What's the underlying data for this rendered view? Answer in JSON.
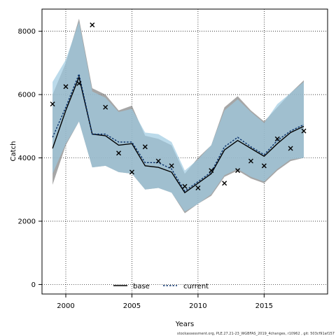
{
  "chart_data": {
    "type": "line",
    "xlabel": "Years",
    "ylabel": "Catch",
    "xlim": [
      1998.2,
      2019.8
    ],
    "ylim": [
      -300,
      8700
    ],
    "x_ticks": [
      2000,
      2005,
      2010,
      2015
    ],
    "y_ticks": [
      0,
      2000,
      4000,
      6000,
      8000
    ],
    "grid": true,
    "legend_placement": "bottom-center",
    "years": [
      1999,
      2000,
      2001,
      2002,
      2003,
      2004,
      2005,
      2006,
      2007,
      2008,
      2009,
      2010,
      2011,
      2012,
      2013,
      2014,
      2015,
      2016,
      2017,
      2018
    ],
    "series": [
      {
        "name": "base",
        "color": "#000000",
        "band_color": "#808080",
        "values": [
          4300,
          5500,
          6550,
          4750,
          4700,
          4400,
          4450,
          3750,
          3700,
          3550,
          2900,
          3200,
          3500,
          4250,
          4550,
          4300,
          4050,
          4450,
          4800,
          5000
        ],
        "lower": [
          3150,
          4400,
          5150,
          3700,
          3750,
          3550,
          3500,
          3000,
          3050,
          2900,
          2250,
          2550,
          2800,
          3400,
          3600,
          3350,
          3200,
          3600,
          3900,
          4000
        ],
        "upper": [
          6000,
          7000,
          8400,
          6200,
          6000,
          5500,
          5650,
          4700,
          4600,
          4400,
          3500,
          4000,
          4400,
          5600,
          5950,
          5500,
          5150,
          5600,
          6050,
          6450
        ]
      },
      {
        "name": "current",
        "color": "#08306b",
        "band_color": "#9ecae1",
        "values": [
          4650,
          5600,
          6650,
          4750,
          4750,
          4500,
          4500,
          3850,
          3850,
          3650,
          2950,
          3250,
          3550,
          4350,
          4650,
          4350,
          4100,
          4550,
          4850,
          5050
        ],
        "lower": [
          3500,
          4450,
          5150,
          3700,
          3750,
          3550,
          3500,
          3000,
          3050,
          2900,
          2300,
          2550,
          2850,
          3450,
          3650,
          3400,
          3250,
          3650,
          3950,
          4000
        ],
        "upper": [
          6400,
          7100,
          8300,
          6100,
          5900,
          5450,
          5550,
          4800,
          4750,
          4500,
          3600,
          3950,
          4400,
          5500,
          5850,
          5450,
          5100,
          5700,
          6050,
          6400
        ]
      }
    ],
    "observations": {
      "marker": "x",
      "x": [
        1999,
        2000,
        2001,
        2002,
        2003,
        2004,
        2005,
        2006,
        2007,
        2008,
        2009,
        2010,
        2011,
        2012,
        2013,
        2014,
        2015,
        2016,
        2017,
        2018
      ],
      "y": [
        5700,
        6250,
        6350,
        8200,
        5600,
        4150,
        3550,
        4350,
        3900,
        3750,
        3100,
        3050,
        3600,
        3200,
        3600,
        3900,
        3750,
        4600,
        4300,
        4850
      ]
    }
  },
  "footnote": "stockassessment.org, PLE.27.21-23_WGBFAS_2019_4changes, r10962 , git: 503cf91af157"
}
